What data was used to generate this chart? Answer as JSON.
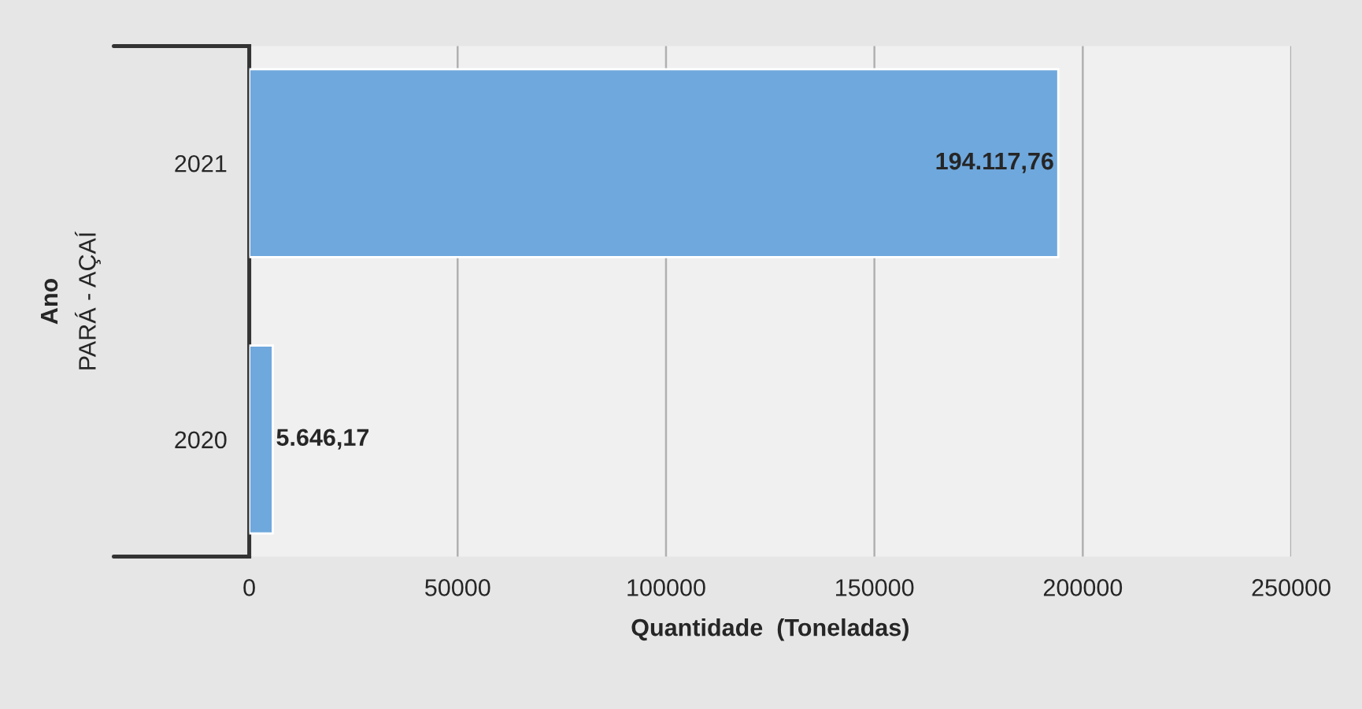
{
  "chart_data": {
    "type": "bar",
    "orientation": "horizontal",
    "categories": [
      "2021",
      "2020"
    ],
    "values": [
      194117.76,
      5646.17
    ],
    "value_labels": [
      "194.117,76",
      "5.646,17"
    ],
    "color": "#6fa8dc",
    "xlabel": "Quantidade  (Toneladas)",
    "annotations": [
      "Ano",
      "PARÁ - AÇAÍ"
    ],
    "xlim": [
      0,
      250000
    ],
    "xticks": [
      0,
      50000,
      100000,
      150000,
      200000,
      250000
    ],
    "grid": "x",
    "legend": false
  }
}
